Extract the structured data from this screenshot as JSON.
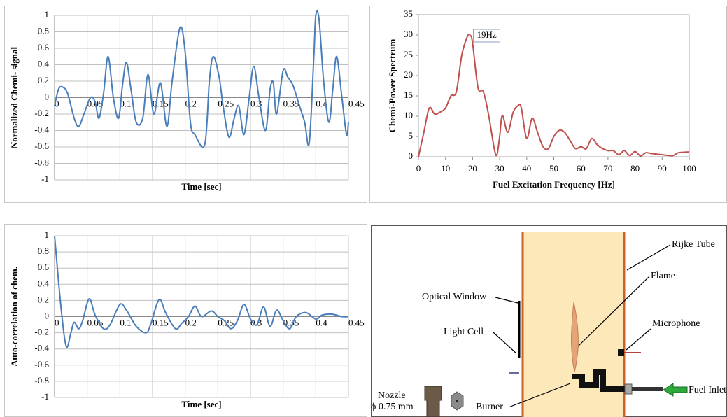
{
  "chart_data": [
    {
      "type": "line",
      "x_label": "Time [sec]",
      "y_label": "Normalized Chemi- signal",
      "color": "#4a7ebb",
      "grid": true,
      "xaxis_at_zero": true,
      "x": [
        0,
        0.006,
        0.012,
        0.02,
        0.03,
        0.037,
        0.045,
        0.055,
        0.062,
        0.068,
        0.075,
        0.082,
        0.09,
        0.098,
        0.104,
        0.11,
        0.117,
        0.125,
        0.135,
        0.143,
        0.152,
        0.162,
        0.172,
        0.18,
        0.192,
        0.2,
        0.208,
        0.215,
        0.23,
        0.237,
        0.243,
        0.252,
        0.258,
        0.267,
        0.275,
        0.282,
        0.29,
        0.298,
        0.305,
        0.313,
        0.323,
        0.33,
        0.335,
        0.34,
        0.35,
        0.357,
        0.365,
        0.375,
        0.383,
        0.39,
        0.397,
        0.4,
        0.405,
        0.412,
        0.42,
        0.426,
        0.432,
        0.44,
        0.447,
        0.45
      ],
      "values": [
        -0.1,
        0.1,
        0.13,
        0.05,
        -0.25,
        -0.35,
        -0.2,
        0.0,
        -0.05,
        -0.25,
        0.05,
        0.5,
        0.0,
        -0.25,
        0.15,
        0.43,
        0.1,
        -0.3,
        -0.25,
        0.28,
        -0.2,
        0.18,
        -0.35,
        0.2,
        0.85,
        0.55,
        -0.3,
        -0.45,
        -0.57,
        0.2,
        0.5,
        0.25,
        -0.1,
        -0.48,
        -0.25,
        -0.1,
        -0.45,
        0.0,
        0.38,
        0.0,
        -0.4,
        0.1,
        0.18,
        -0.2,
        0.33,
        0.25,
        0.15,
        -0.1,
        -0.3,
        -0.55,
        0.5,
        1.0,
        0.95,
        0.2,
        -0.3,
        0.1,
        0.5,
        0.0,
        -0.45,
        -0.3
      ],
      "xlim": [
        0,
        0.45
      ],
      "xticks": [
        0,
        0.05,
        0.1,
        0.15,
        0.2,
        0.25,
        0.3,
        0.35,
        0.4,
        0.45
      ],
      "ylim": [
        -1,
        1
      ],
      "yticks": [
        -1,
        -0.8,
        -0.6,
        -0.4,
        -0.2,
        0,
        0.2,
        0.4,
        0.6,
        0.8,
        1
      ]
    },
    {
      "type": "line",
      "x_label": "Fuel Excitation Frequency [Hz]",
      "y_label": "Chemi-Power Spectrum",
      "color": "#c0504d",
      "grid": false,
      "annotation": "19Hz",
      "x": [
        0,
        2,
        4,
        6,
        8,
        10,
        12,
        14,
        16,
        18,
        19,
        20,
        22,
        24,
        26,
        28,
        29,
        30,
        31,
        33,
        35,
        37,
        38,
        40,
        42,
        44,
        46,
        48,
        50,
        52,
        54,
        56,
        58,
        60,
        62,
        64,
        66,
        68,
        70,
        72,
        74,
        76,
        78,
        80,
        82,
        84,
        86,
        90,
        94,
        96,
        100
      ],
      "values": [
        0,
        6,
        12,
        10.5,
        11,
        12,
        15,
        16,
        25,
        29.5,
        30,
        28,
        17,
        16,
        10,
        2,
        0.5,
        5,
        10.2,
        6,
        11,
        12.7,
        12,
        4.5,
        9.5,
        6,
        2.5,
        2,
        5,
        6.5,
        6,
        4,
        2,
        2.5,
        2,
        4.5,
        3,
        2,
        1.5,
        1.5,
        0.5,
        1.5,
        0.3,
        1.3,
        0.2,
        1,
        0.8,
        0.5,
        0.3,
        1,
        1.2
      ],
      "xlim": [
        0,
        100
      ],
      "xticks": [
        0,
        10,
        20,
        30,
        40,
        50,
        60,
        70,
        80,
        90,
        100
      ],
      "ylim": [
        0,
        35
      ],
      "yticks": [
        0,
        5,
        10,
        15,
        20,
        25,
        30,
        35
      ]
    },
    {
      "type": "line",
      "x_label": "Time [sec]",
      "y_label": "Auto-correlation of chem.",
      "color": "#4a7ebb",
      "grid": true,
      "xaxis_at_zero": true,
      "x": [
        0,
        0.01,
        0.018,
        0.025,
        0.03,
        0.037,
        0.043,
        0.053,
        0.062,
        0.075,
        0.085,
        0.1,
        0.11,
        0.125,
        0.14,
        0.147,
        0.16,
        0.17,
        0.185,
        0.195,
        0.205,
        0.215,
        0.225,
        0.24,
        0.25,
        0.26,
        0.27,
        0.28,
        0.29,
        0.3,
        0.31,
        0.32,
        0.33,
        0.34,
        0.35,
        0.36,
        0.37,
        0.385,
        0.4,
        0.41,
        0.425,
        0.44,
        0.45
      ],
      "values": [
        1,
        0.1,
        -0.37,
        -0.2,
        -0.07,
        -0.15,
        -0.05,
        0.22,
        0.02,
        -0.15,
        -0.1,
        0.15,
        0.08,
        -0.12,
        -0.2,
        -0.1,
        0.21,
        0.05,
        -0.15,
        -0.08,
        0.0,
        0.13,
        0.0,
        0.07,
        0.0,
        -0.05,
        -0.15,
        -0.05,
        0.15,
        -0.03,
        -0.1,
        0.12,
        -0.12,
        0.08,
        -0.05,
        -0.15,
        0.0,
        0.05,
        -0.03,
        0.02,
        0.03,
        0.0,
        0.0
      ],
      "xlim": [
        0,
        0.45
      ],
      "xticks": [
        0,
        0.05,
        0.1,
        0.15,
        0.2,
        0.25,
        0.3,
        0.35,
        0.4,
        0.45
      ],
      "ylim": [
        -1,
        1
      ],
      "yticks": [
        -1,
        -0.8,
        -0.6,
        -0.4,
        -0.2,
        0,
        0.2,
        0.4,
        0.6,
        0.8,
        1
      ]
    }
  ],
  "diagram": {
    "rijke_tube": "Rijke Tube",
    "flame": "Flame",
    "optical_window": "Optical Window",
    "microphone": "Microphone",
    "light_cell": "Light Cell",
    "fuel_inlet": "Fuel Inlet",
    "nozzle": "Nozzle",
    "nozzle_size": "ϕ 0.75 mm",
    "burner": "Burner"
  }
}
